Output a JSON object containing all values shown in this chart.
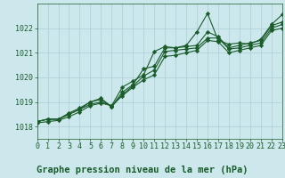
{
  "background_color": "#cce8ec",
  "grid_color": "#aacdd4",
  "line_color": "#1a5c2a",
  "bottom_label": "Graphe pression niveau de la mer (hPa)",
  "xlim": [
    0,
    23
  ],
  "ylim": [
    1017.5,
    1023.0
  ],
  "yticks": [
    1018,
    1019,
    1020,
    1021,
    1022
  ],
  "xticks": [
    0,
    1,
    2,
    3,
    4,
    5,
    6,
    7,
    8,
    9,
    10,
    11,
    12,
    13,
    14,
    15,
    16,
    17,
    18,
    19,
    20,
    21,
    22,
    23
  ],
  "series": [
    [
      1018.2,
      1018.3,
      1018.3,
      1018.5,
      1018.7,
      1018.9,
      1019.0,
      1018.85,
      1019.6,
      1019.85,
      1020.1,
      1021.05,
      1021.25,
      1021.2,
      1021.3,
      1021.85,
      1022.6,
      1021.5,
      1021.35,
      1021.4,
      1021.35,
      1021.55,
      1022.15,
      1022.55
    ],
    [
      1018.2,
      1018.3,
      1018.3,
      1018.5,
      1018.7,
      1019.0,
      1019.1,
      1018.8,
      1019.4,
      1019.7,
      1020.35,
      1020.45,
      1021.2,
      1021.2,
      1021.25,
      1021.3,
      1021.85,
      1021.65,
      1021.2,
      1021.3,
      1021.4,
      1021.5,
      1022.1,
      1022.25
    ],
    [
      1018.2,
      1018.3,
      1018.3,
      1018.55,
      1018.75,
      1019.0,
      1019.15,
      1018.8,
      1019.3,
      1019.65,
      1020.05,
      1020.3,
      1021.05,
      1021.1,
      1021.15,
      1021.2,
      1021.6,
      1021.6,
      1021.15,
      1021.2,
      1021.3,
      1021.4,
      1022.0,
      1022.15
    ],
    [
      1018.15,
      1018.2,
      1018.25,
      1018.4,
      1018.6,
      1018.85,
      1018.95,
      1018.85,
      1019.25,
      1019.6,
      1019.9,
      1020.1,
      1020.85,
      1020.9,
      1021.0,
      1021.1,
      1021.5,
      1021.45,
      1021.0,
      1021.1,
      1021.2,
      1021.3,
      1021.9,
      1022.0
    ]
  ],
  "marker": "D",
  "markersize": 2.2,
  "linewidth": 0.8,
  "tick_fontsize": 6.0,
  "label_fontsize": 7.5
}
